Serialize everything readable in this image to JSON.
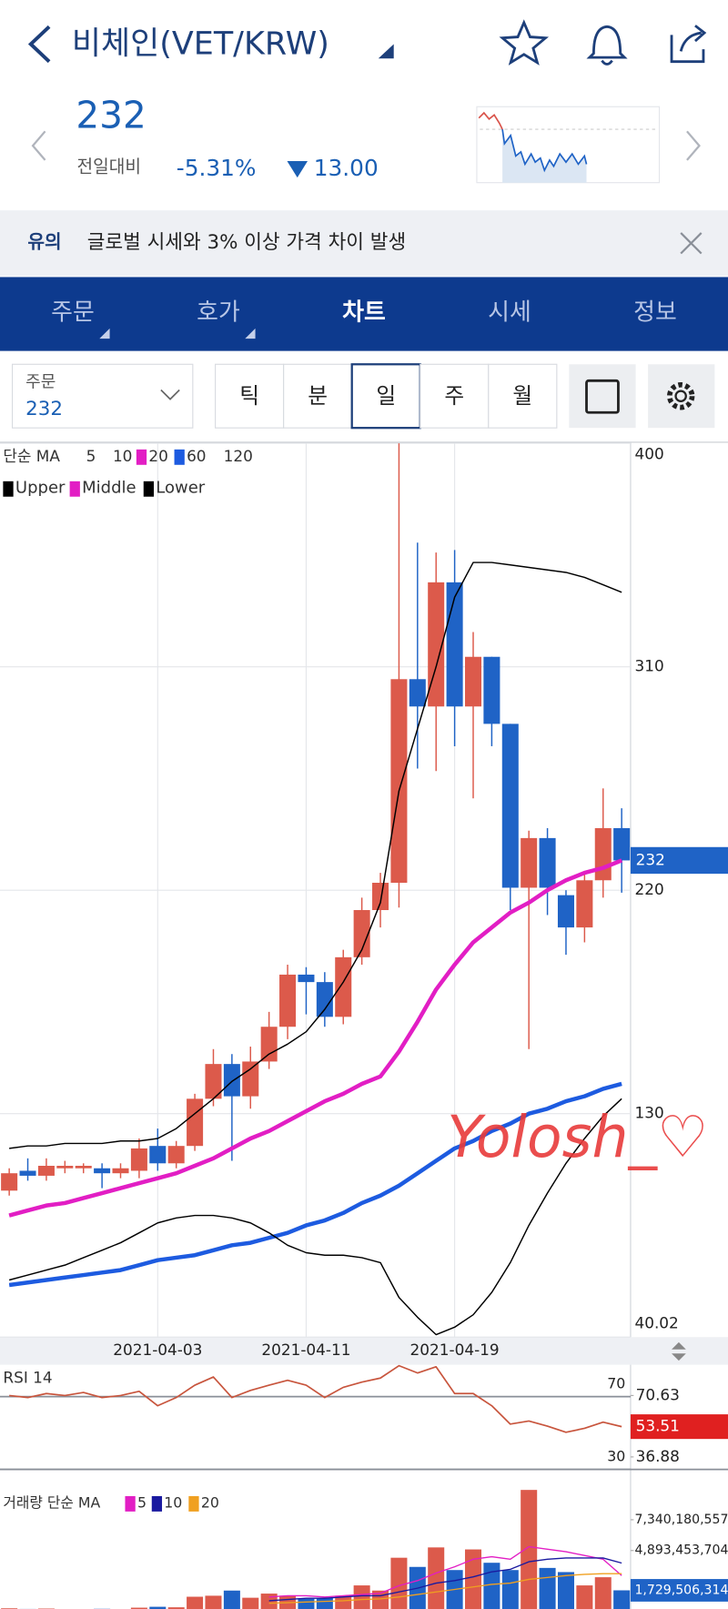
{
  "header": {
    "title": "비체인(VET/KRW)",
    "price": "232",
    "change_label": "전일대비",
    "change_rate": "-5.31%",
    "change_amount": "13.00"
  },
  "notice": {
    "tag": "유의",
    "text": "글로벌 시세와 3% 이상 가격 차이 발생"
  },
  "tabs": [
    "주문",
    "호가",
    "차트",
    "시세",
    "정보"
  ],
  "active_tab": 2,
  "order_select": {
    "label": "주문",
    "value": "232"
  },
  "periods": [
    "틱",
    "분",
    "일",
    "주",
    "월"
  ],
  "selected_period": 2,
  "watermark": "Yolosh_♡",
  "chart_data": [
    {
      "type": "candlestick",
      "categories": [
        null,
        null,
        null,
        null,
        null,
        null,
        null,
        null,
        "2021-04-03",
        null,
        null,
        null,
        null,
        null,
        null,
        null,
        "2021-04-11",
        null,
        null,
        null,
        null,
        null,
        null,
        null,
        "2021-04-19",
        null,
        null,
        null,
        null,
        null,
        null,
        null,
        null,
        null
      ],
      "open": [
        99,
        107,
        105,
        108,
        108,
        108,
        106,
        107,
        117,
        110,
        117,
        136,
        150,
        137,
        151,
        165,
        186,
        183,
        169,
        193,
        212,
        223,
        305,
        294,
        344,
        294,
        314,
        287,
        221,
        241,
        218,
        205,
        224,
        245
      ],
      "high": [
        108,
        112,
        112,
        111,
        110,
        110,
        110,
        120,
        124,
        119,
        138,
        156,
        154,
        157,
        171,
        190,
        189,
        187,
        196,
        217,
        227,
        400,
        360,
        356,
        357,
        324,
        314,
        287,
        244,
        245,
        220,
        227,
        261,
        253
      ],
      "low": [
        97,
        103,
        103,
        106,
        106,
        100,
        104,
        104,
        107,
        108,
        115,
        133,
        111,
        132,
        148,
        160,
        170,
        165,
        166,
        190,
        205,
        213,
        269,
        268,
        278,
        257,
        278,
        212,
        156,
        210,
        194,
        199,
        217,
        219
      ],
      "close": [
        106,
        105,
        109,
        109,
        109,
        106,
        108,
        116,
        110,
        117,
        136,
        150,
        137,
        151,
        165,
        186,
        183,
        169,
        193,
        212,
        223,
        305,
        294,
        344,
        294,
        314,
        287,
        221,
        241,
        221,
        205,
        224,
        245,
        232
      ],
      "up_color": "#dc5a4b",
      "down_color": "#1f63c6",
      "current_value": 232,
      "ma_label": "단순 MA",
      "ma_legend": [
        {
          "name": "5"
        },
        {
          "name": "10"
        },
        {
          "name": "20",
          "color": "#e21ec4",
          "values": [
            89,
            91,
            93,
            94,
            96,
            98,
            100,
            102,
            104,
            106,
            109,
            112,
            116,
            120,
            123,
            127,
            131,
            135,
            138,
            142,
            145,
            155,
            167,
            180,
            190,
            199,
            205,
            211,
            215,
            220,
            224,
            227,
            229,
            232
          ]
        },
        {
          "name": "60",
          "color": "#1d5be0",
          "values": [
            61,
            62,
            63,
            64,
            65,
            66,
            67,
            69,
            71,
            72,
            73,
            75,
            77,
            78,
            80,
            82,
            85,
            87,
            90,
            94,
            97,
            101,
            106,
            111,
            116,
            119,
            123,
            126,
            130,
            132,
            135,
            137,
            140,
            142
          ]
        },
        {
          "name": "120"
        }
      ],
      "bb_legend": [
        {
          "name": "Upper",
          "color": "#000000",
          "values": [
            116,
            117,
            117,
            118,
            118,
            118,
            119,
            119,
            120,
            124,
            130,
            136,
            143,
            148,
            154,
            158,
            163,
            172,
            183,
            196,
            215,
            260,
            285,
            310,
            338,
            352,
            352,
            351,
            350,
            349,
            348,
            346,
            343,
            340
          ]
        },
        {
          "name": "Middle",
          "color": "#e21ec4",
          "values": [
            89,
            91,
            93,
            94,
            96,
            98,
            100,
            102,
            104,
            106,
            109,
            112,
            116,
            120,
            123,
            127,
            131,
            135,
            138,
            142,
            145,
            155,
            167,
            180,
            190,
            199,
            205,
            211,
            215,
            220,
            224,
            227,
            229,
            232
          ]
        },
        {
          "name": "Lower",
          "color": "#000000",
          "values": [
            63,
            65,
            67,
            69,
            72,
            75,
            78,
            82,
            86,
            88,
            89,
            89,
            88,
            86,
            82,
            77,
            74,
            73,
            73,
            72,
            70,
            56,
            48,
            41,
            44,
            49,
            58,
            70,
            85,
            98,
            110,
            120,
            129,
            136
          ]
        }
      ],
      "ylim": [
        40.02,
        400
      ],
      "yticks": [
        400,
        310,
        220,
        130,
        40.02
      ],
      "grid": true
    },
    {
      "type": "line",
      "title": "RSI 14",
      "color": "#c8553d",
      "values": [
        70.6,
        69.5,
        71.7,
        70.6,
        72.3,
        69.5,
        70.6,
        72.9,
        65,
        69.5,
        76.3,
        80.8,
        69.5,
        73.4,
        76.3,
        79,
        76.3,
        69.5,
        75.1,
        78,
        80.2,
        87,
        83,
        86.4,
        71.7,
        71.7,
        65,
        54.9,
        56.6,
        53.8,
        50.4,
        52.6,
        56,
        53.51
      ],
      "levels": [
        70,
        30
      ],
      "current_value": 53.51,
      "ylim": [
        30,
        87.5
      ],
      "yticks": [
        70.63,
        36.88
      ]
    },
    {
      "type": "bar",
      "title": "거래량 단순 MA",
      "values": [
        300000000,
        250000000,
        280000000,
        200000000,
        220000000,
        260000000,
        240000000,
        350000000,
        420000000,
        380000000,
        1220000000,
        1300000000,
        1710000000,
        1140000000,
        1470000000,
        1300000000,
        1060000000,
        1140000000,
        1300000000,
        2120000000,
        1710000000,
        4320000000,
        3590000000,
        5140000000,
        3340000000,
        4980000000,
        3920000000,
        3340000000,
        9710000000,
        3510000000,
        3180000000,
        2120000000,
        2770000000,
        1729506314
      ],
      "ma_legend": [
        {
          "name": "5",
          "color": "#e21ec4",
          "values": [
            null,
            null,
            null,
            null,
            null,
            null,
            null,
            null,
            null,
            null,
            null,
            null,
            null,
            null,
            1200000000,
            1300000000,
            1300000000,
            1200000000,
            1300000000,
            1400000000,
            1500000000,
            2100000000,
            2500000000,
            3100000000,
            3600000000,
            4200000000,
            4400000000,
            4200000000,
            5200000000,
            5000000000,
            4800000000,
            4500000000,
            4200000000,
            2900000000
          ]
        },
        {
          "name": "10",
          "color": "#1a1aa0",
          "values": [
            null,
            null,
            null,
            null,
            null,
            null,
            null,
            null,
            null,
            null,
            null,
            null,
            null,
            null,
            900000000,
            1000000000,
            1100000000,
            1100000000,
            1200000000,
            1300000000,
            1300000000,
            1600000000,
            1900000000,
            2300000000,
            2500000000,
            2800000000,
            3200000000,
            3400000000,
            4000000000,
            4200000000,
            4300000000,
            4300000000,
            4300000000,
            3900000000
          ]
        },
        {
          "name": "20",
          "color": "#f0a020",
          "values": [
            null,
            null,
            null,
            null,
            null,
            null,
            null,
            null,
            null,
            null,
            null,
            null,
            null,
            null,
            700000000,
            750000000,
            800000000,
            850000000,
            900000000,
            1000000000,
            1050000000,
            1200000000,
            1400000000,
            1600000000,
            1800000000,
            2000000000,
            2200000000,
            2300000000,
            2600000000,
            2750000000,
            2900000000,
            3000000000,
            3050000000,
            3050000000
          ]
        }
      ],
      "current_value": {
        "value": 1729506314,
        "label": "1,729,506,314"
      },
      "ylim": [
        0,
        9870000000
      ],
      "yticks": [
        {
          "value": 7340180557,
          "label": "7,340,180,557"
        },
        {
          "value": 4893453704,
          "label": "4,893,453,704"
        }
      ]
    }
  ]
}
